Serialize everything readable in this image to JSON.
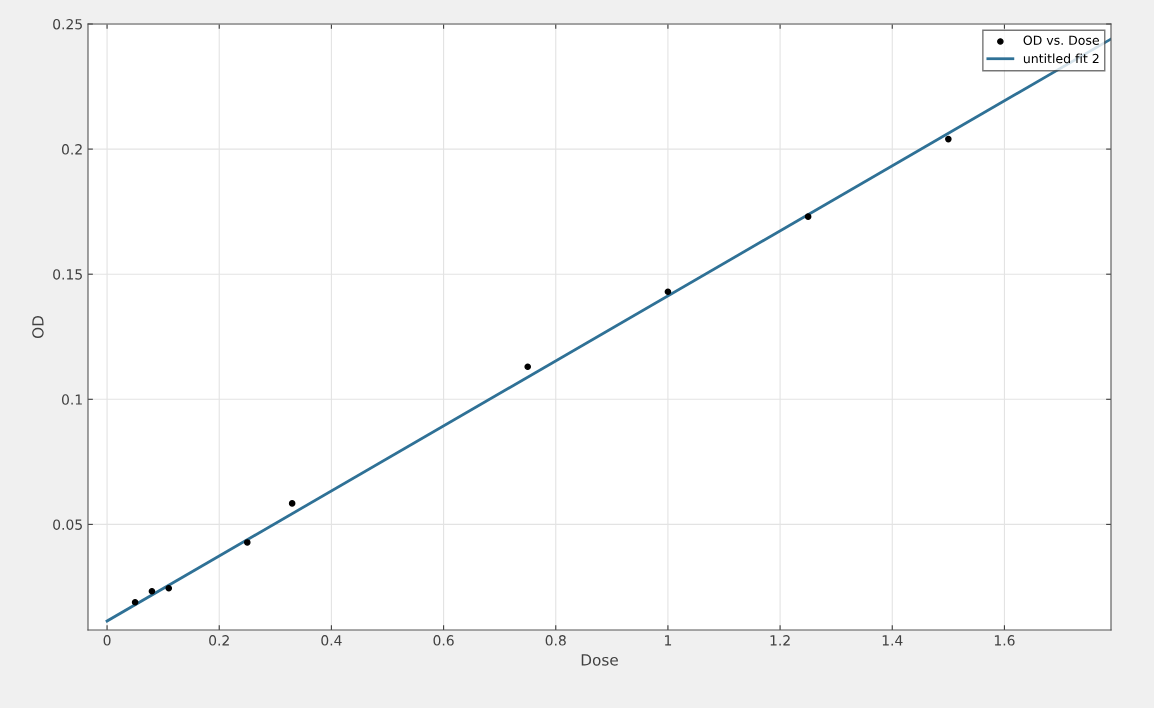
{
  "chart_data": {
    "type": "scatter",
    "xlabel": "Dose",
    "ylabel": "OD",
    "xlim": [
      -0.034,
      1.79
    ],
    "ylim": [
      0.0078,
      0.25
    ],
    "xticks": [
      0,
      0.2,
      0.4,
      0.6,
      0.8,
      1,
      1.2,
      1.4,
      1.6
    ],
    "yticks": [
      0.05,
      0.1,
      0.15,
      0.2,
      0.25
    ],
    "grid": true,
    "legend": "top right",
    "series": [
      {
        "name": "OD vs. Dose",
        "marker": "circle",
        "color": "#000000",
        "x": [
          0.05,
          0.08,
          0.11,
          0.25,
          0.33,
          0.75,
          1.0,
          1.25,
          1.5
        ],
        "values": [
          0.0189,
          0.0233,
          0.0245,
          0.0428,
          0.0584,
          0.113,
          0.143,
          0.173,
          0.204
        ]
      },
      {
        "name": "untitled fit 2",
        "type": "line",
        "line_style": "solid",
        "color": "#2f7196",
        "x": [
          0,
          1.79
        ],
        "values": [
          0.0114,
          0.244
        ]
      }
    ]
  }
}
